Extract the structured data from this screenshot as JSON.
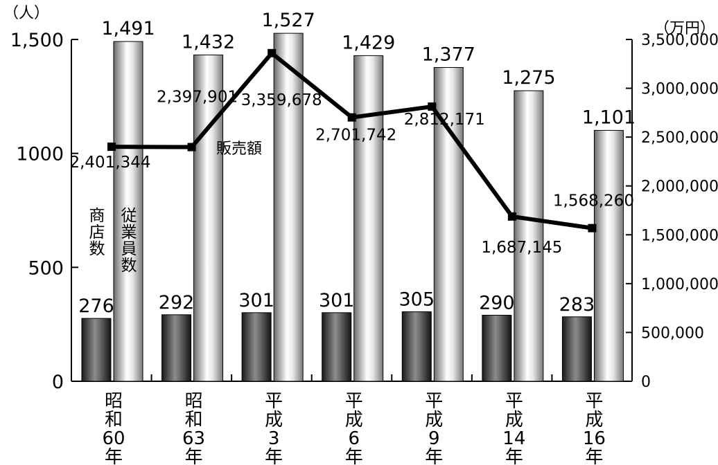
{
  "chart_data": {
    "type": "bar",
    "categories": [
      [
        "昭",
        "和",
        "60",
        "年"
      ],
      [
        "昭",
        "和",
        "63",
        "年"
      ],
      [
        "平",
        "成",
        "3",
        "年"
      ],
      [
        "平",
        "成",
        "6",
        "年"
      ],
      [
        "平",
        "成",
        "9",
        "年"
      ],
      [
        "平",
        "成",
        "14",
        "年"
      ],
      [
        "平",
        "成",
        "16",
        "年"
      ]
    ],
    "series": [
      {
        "name": "商店数",
        "name_chars": [
          "商",
          "店",
          "数"
        ],
        "type": "bar",
        "axis": "left",
        "values": [
          276,
          292,
          301,
          301,
          305,
          290,
          283
        ],
        "labels": [
          "276",
          "292",
          "301",
          "301",
          "305",
          "290",
          "283"
        ]
      },
      {
        "name": "従業員数",
        "name_chars": [
          "従",
          "業",
          "員",
          "数"
        ],
        "type": "bar",
        "axis": "left",
        "values": [
          1491,
          1432,
          1527,
          1429,
          1377,
          1275,
          1101
        ],
        "labels": [
          "1,491",
          "1,432",
          "1,527",
          "1,429",
          "1,377",
          "1,275",
          "1,101"
        ]
      },
      {
        "name": "販売額",
        "type": "line",
        "axis": "right",
        "values": [
          2401344,
          2397901,
          3359678,
          2701742,
          2812171,
          1687145,
          1568260
        ],
        "labels": [
          "2,401,344",
          "2,397,901",
          "3,359,678",
          "2,701,742",
          "2,812,171",
          "1,687,145",
          "1,568,260"
        ]
      }
    ],
    "y_left": {
      "unit": "（人）",
      "ylim": [
        0,
        1500
      ],
      "ticks": [
        0,
        500,
        1000,
        1500
      ],
      "tick_labels": [
        "0",
        "500",
        "1000",
        "1,500"
      ]
    },
    "y_right": {
      "unit": "（万円）",
      "ylim": [
        0,
        3500000
      ],
      "ticks": [
        0,
        500000,
        1000000,
        1500000,
        2000000,
        2500000,
        3000000,
        3500000
      ],
      "tick_labels": [
        "0",
        "500,000",
        "1,000,000",
        "1,500,000",
        "2,000,000",
        "2,500,000",
        "3,000,000",
        "3,500,000"
      ]
    },
    "grid": false,
    "legend": "inline",
    "colors": {
      "line": "#000000",
      "store_bar": "#3c3c3c",
      "employee_bar": "#c8c8c8"
    }
  }
}
